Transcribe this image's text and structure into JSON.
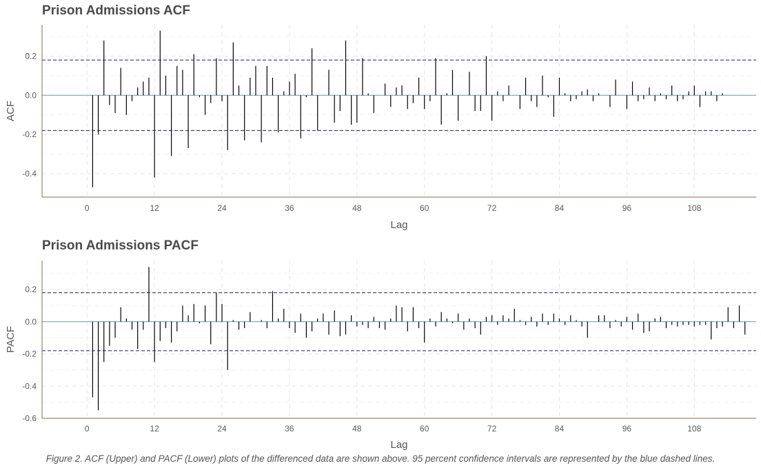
{
  "caption": "Figure 2. ACF (Upper) and PACF (Lower) plots of the differenced data are shown above. 95 percent confidence intervals are represented by the blue dashed lines.",
  "colors": {
    "bars": "#000000",
    "zero_line": "#6d9aa6",
    "ci_line": "#1a1a66",
    "grid": "#e6e6e6",
    "axis": "#8b6a52",
    "title": "#4a4a4a"
  },
  "chart_data": [
    {
      "type": "bar",
      "title": "Prison Admissions ACF",
      "xlabel": "Lag",
      "ylabel": "ACF",
      "xlim": [
        -8,
        119
      ],
      "ylim": [
        -0.52,
        0.36
      ],
      "xticks": [
        0,
        12,
        24,
        36,
        48,
        60,
        72,
        84,
        96,
        108
      ],
      "yticks": [
        -0.4,
        -0.2,
        0.0,
        0.2
      ],
      "ytick_labels": [
        "-0.4",
        "-0.2",
        "0.0",
        "0.2"
      ],
      "ci": [
        0.18,
        -0.18
      ],
      "grid": true,
      "x": [
        1,
        2,
        3,
        4,
        5,
        6,
        7,
        8,
        9,
        10,
        11,
        12,
        13,
        14,
        15,
        16,
        17,
        18,
        19,
        20,
        21,
        22,
        23,
        24,
        25,
        26,
        27,
        28,
        29,
        30,
        31,
        32,
        33,
        34,
        35,
        36,
        37,
        38,
        39,
        40,
        41,
        42,
        43,
        44,
        45,
        46,
        47,
        48,
        49,
        50,
        51,
        52,
        53,
        54,
        55,
        56,
        57,
        58,
        59,
        60,
        61,
        62,
        63,
        64,
        65,
        66,
        67,
        68,
        69,
        70,
        71,
        72,
        73,
        74,
        75,
        76,
        77,
        78,
        79,
        80,
        81,
        82,
        83,
        84,
        85,
        86,
        87,
        88,
        89,
        90,
        91,
        92,
        93,
        94,
        95,
        96,
        97,
        98,
        99,
        100,
        101,
        102,
        103,
        104,
        105,
        106,
        107,
        108,
        109,
        110,
        111,
        112,
        113,
        114,
        115,
        116,
        117,
        118
      ],
      "values": [
        -0.47,
        -0.2,
        0.28,
        -0.05,
        -0.09,
        0.14,
        -0.1,
        -0.03,
        0.04,
        0.07,
        0.09,
        -0.42,
        0.33,
        0.1,
        -0.31,
        0.15,
        0.13,
        -0.27,
        0.21,
        -0.01,
        -0.1,
        -0.04,
        0.19,
        -0.03,
        -0.28,
        0.27,
        0.05,
        -0.23,
        0.09,
        0.15,
        -0.24,
        0.15,
        0.09,
        -0.19,
        0.02,
        0.07,
        0.11,
        -0.22,
        -0.01,
        0.24,
        -0.18,
        0.0,
        0.13,
        -0.14,
        -0.08,
        0.28,
        -0.15,
        -0.14,
        0.19,
        0.01,
        -0.09,
        0.0,
        0.06,
        -0.06,
        0.04,
        0.05,
        -0.07,
        -0.04,
        0.09,
        -0.07,
        -0.03,
        0.19,
        -0.15,
        0.01,
        0.13,
        -0.13,
        0.0,
        0.12,
        -0.08,
        -0.08,
        0.2,
        -0.13,
        0.02,
        -0.03,
        0.05,
        0.0,
        -0.07,
        0.09,
        -0.03,
        -0.06,
        0.1,
        -0.01,
        -0.11,
        0.09,
        0.01,
        -0.03,
        -0.02,
        0.02,
        0.03,
        -0.03,
        0.01,
        0.0,
        -0.06,
        0.08,
        0.0,
        -0.07,
        0.07,
        -0.03,
        -0.02,
        0.04,
        -0.03,
        0.01,
        -0.02,
        0.05,
        -0.03,
        -0.02,
        0.02,
        0.05,
        -0.06,
        0.02,
        0.02,
        -0.03,
        0.01,
        0.0,
        0.0,
        0.0,
        0.0,
        0.0
      ]
    },
    {
      "type": "bar",
      "title": "Prison Admissions PACF",
      "xlabel": "Lag",
      "ylabel": "PACF",
      "xlim": [
        -8,
        119
      ],
      "ylim": [
        -0.6,
        0.38
      ],
      "xticks": [
        0,
        12,
        24,
        36,
        48,
        60,
        72,
        84,
        96,
        108
      ],
      "yticks": [
        -0.6,
        -0.4,
        -0.2,
        0.0,
        0.2
      ],
      "ytick_labels": [
        "-0.6",
        "-0.4",
        "-0.2",
        "0.0",
        "0.2"
      ],
      "ci": [
        0.18,
        -0.18
      ],
      "grid": true,
      "x": [
        1,
        2,
        3,
        4,
        5,
        6,
        7,
        8,
        9,
        10,
        11,
        12,
        13,
        14,
        15,
        16,
        17,
        18,
        19,
        20,
        21,
        22,
        23,
        24,
        25,
        26,
        27,
        28,
        29,
        30,
        31,
        32,
        33,
        34,
        35,
        36,
        37,
        38,
        39,
        40,
        41,
        42,
        43,
        44,
        45,
        46,
        47,
        48,
        49,
        50,
        51,
        52,
        53,
        54,
        55,
        56,
        57,
        58,
        59,
        60,
        61,
        62,
        63,
        64,
        65,
        66,
        67,
        68,
        69,
        70,
        71,
        72,
        73,
        74,
        75,
        76,
        77,
        78,
        79,
        80,
        81,
        82,
        83,
        84,
        85,
        86,
        87,
        88,
        89,
        90,
        91,
        92,
        93,
        94,
        95,
        96,
        97,
        98,
        99,
        100,
        101,
        102,
        103,
        104,
        105,
        106,
        107,
        108,
        109,
        110,
        111,
        112,
        113,
        114,
        115,
        116,
        117,
        118
      ],
      "values": [
        -0.47,
        -0.55,
        -0.25,
        -0.15,
        -0.1,
        0.09,
        0.02,
        -0.05,
        -0.17,
        -0.05,
        0.34,
        -0.25,
        -0.12,
        -0.04,
        -0.13,
        -0.06,
        0.1,
        0.04,
        0.11,
        -0.01,
        0.1,
        -0.14,
        0.18,
        0.11,
        -0.3,
        0.01,
        -0.05,
        -0.04,
        0.06,
        0.0,
        0.01,
        -0.04,
        0.19,
        0.02,
        0.08,
        -0.04,
        -0.07,
        0.05,
        -0.1,
        -0.06,
        0.02,
        0.05,
        -0.08,
        0.07,
        -0.09,
        -0.08,
        0.04,
        -0.03,
        -0.02,
        -0.04,
        0.03,
        -0.04,
        -0.05,
        0.02,
        0.1,
        0.09,
        -0.06,
        0.09,
        -0.04,
        -0.13,
        0.02,
        -0.03,
        0.06,
        0.02,
        -0.01,
        0.05,
        -0.05,
        0.02,
        -0.04,
        -0.08,
        0.03,
        0.04,
        -0.02,
        0.04,
        0.02,
        0.08,
        0.01,
        -0.02,
        0.03,
        -0.03,
        0.05,
        -0.02,
        0.05,
        0.02,
        -0.02,
        0.04,
        0.01,
        -0.03,
        -0.1,
        0.0,
        0.04,
        0.04,
        -0.04,
        0.01,
        -0.03,
        0.03,
        -0.05,
        0.05,
        -0.07,
        -0.06,
        0.02,
        0.03,
        -0.04,
        -0.02,
        -0.03,
        -0.02,
        -0.02,
        -0.03,
        -0.02,
        -0.02,
        -0.11,
        -0.04,
        -0.03,
        0.09,
        -0.04,
        0.1,
        -0.08,
        0.0
      ]
    }
  ]
}
